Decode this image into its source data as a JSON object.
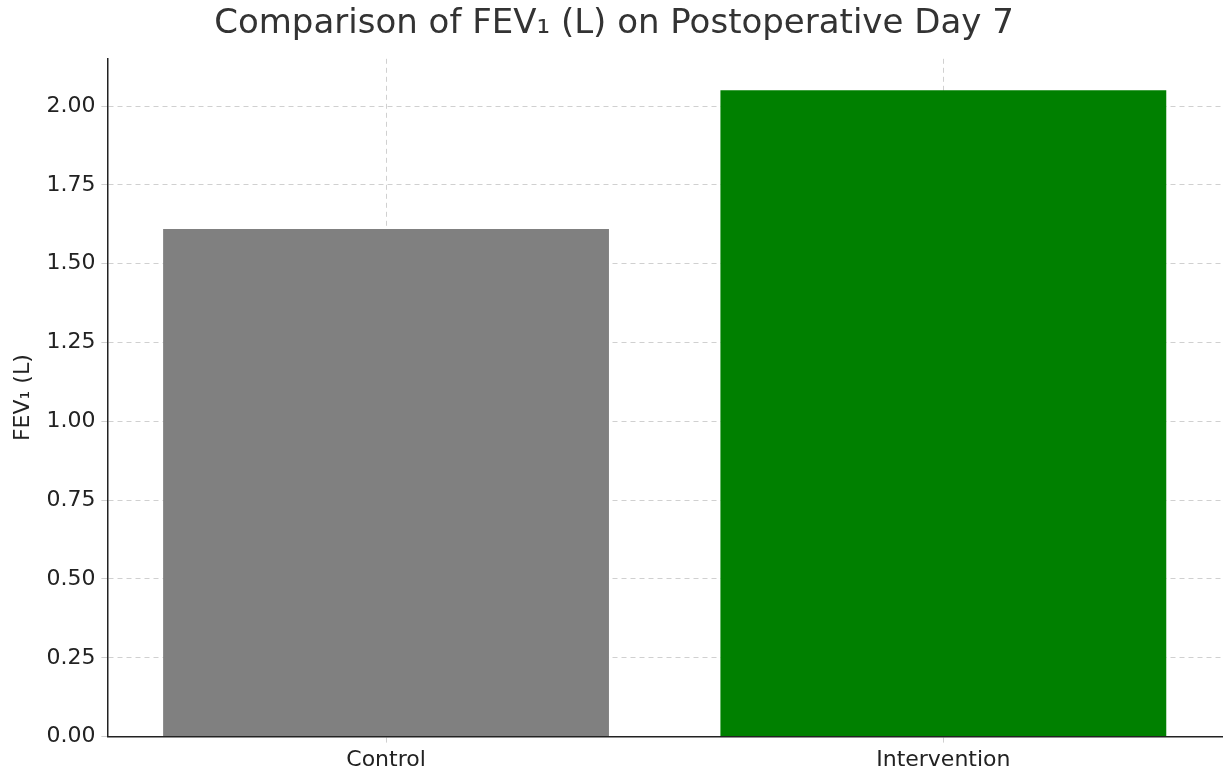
{
  "chart_data": {
    "type": "bar",
    "title": "Comparison of FEV₁ (L) on Postoperative Day 7",
    "ylabel": "FEV₁ (L)",
    "categories": [
      "Control",
      "Intervention"
    ],
    "values": [
      1.61,
      2.05
    ],
    "colors": [
      "#808080",
      "#008000"
    ],
    "ylim": [
      0,
      2.15
    ],
    "yticks": [
      {
        "value": 0,
        "label": "0.00"
      },
      {
        "value": 0.25,
        "label": "0.25"
      },
      {
        "value": 0.5,
        "label": "0.50"
      },
      {
        "value": 0.75,
        "label": "0.75"
      },
      {
        "value": 1,
        "label": "1.00"
      },
      {
        "value": 1.25,
        "label": "1.25"
      },
      {
        "value": 1.5,
        "label": "1.50"
      },
      {
        "value": 1.75,
        "label": "1.75"
      },
      {
        "value": 2,
        "label": "2.00"
      }
    ],
    "grid": true
  }
}
